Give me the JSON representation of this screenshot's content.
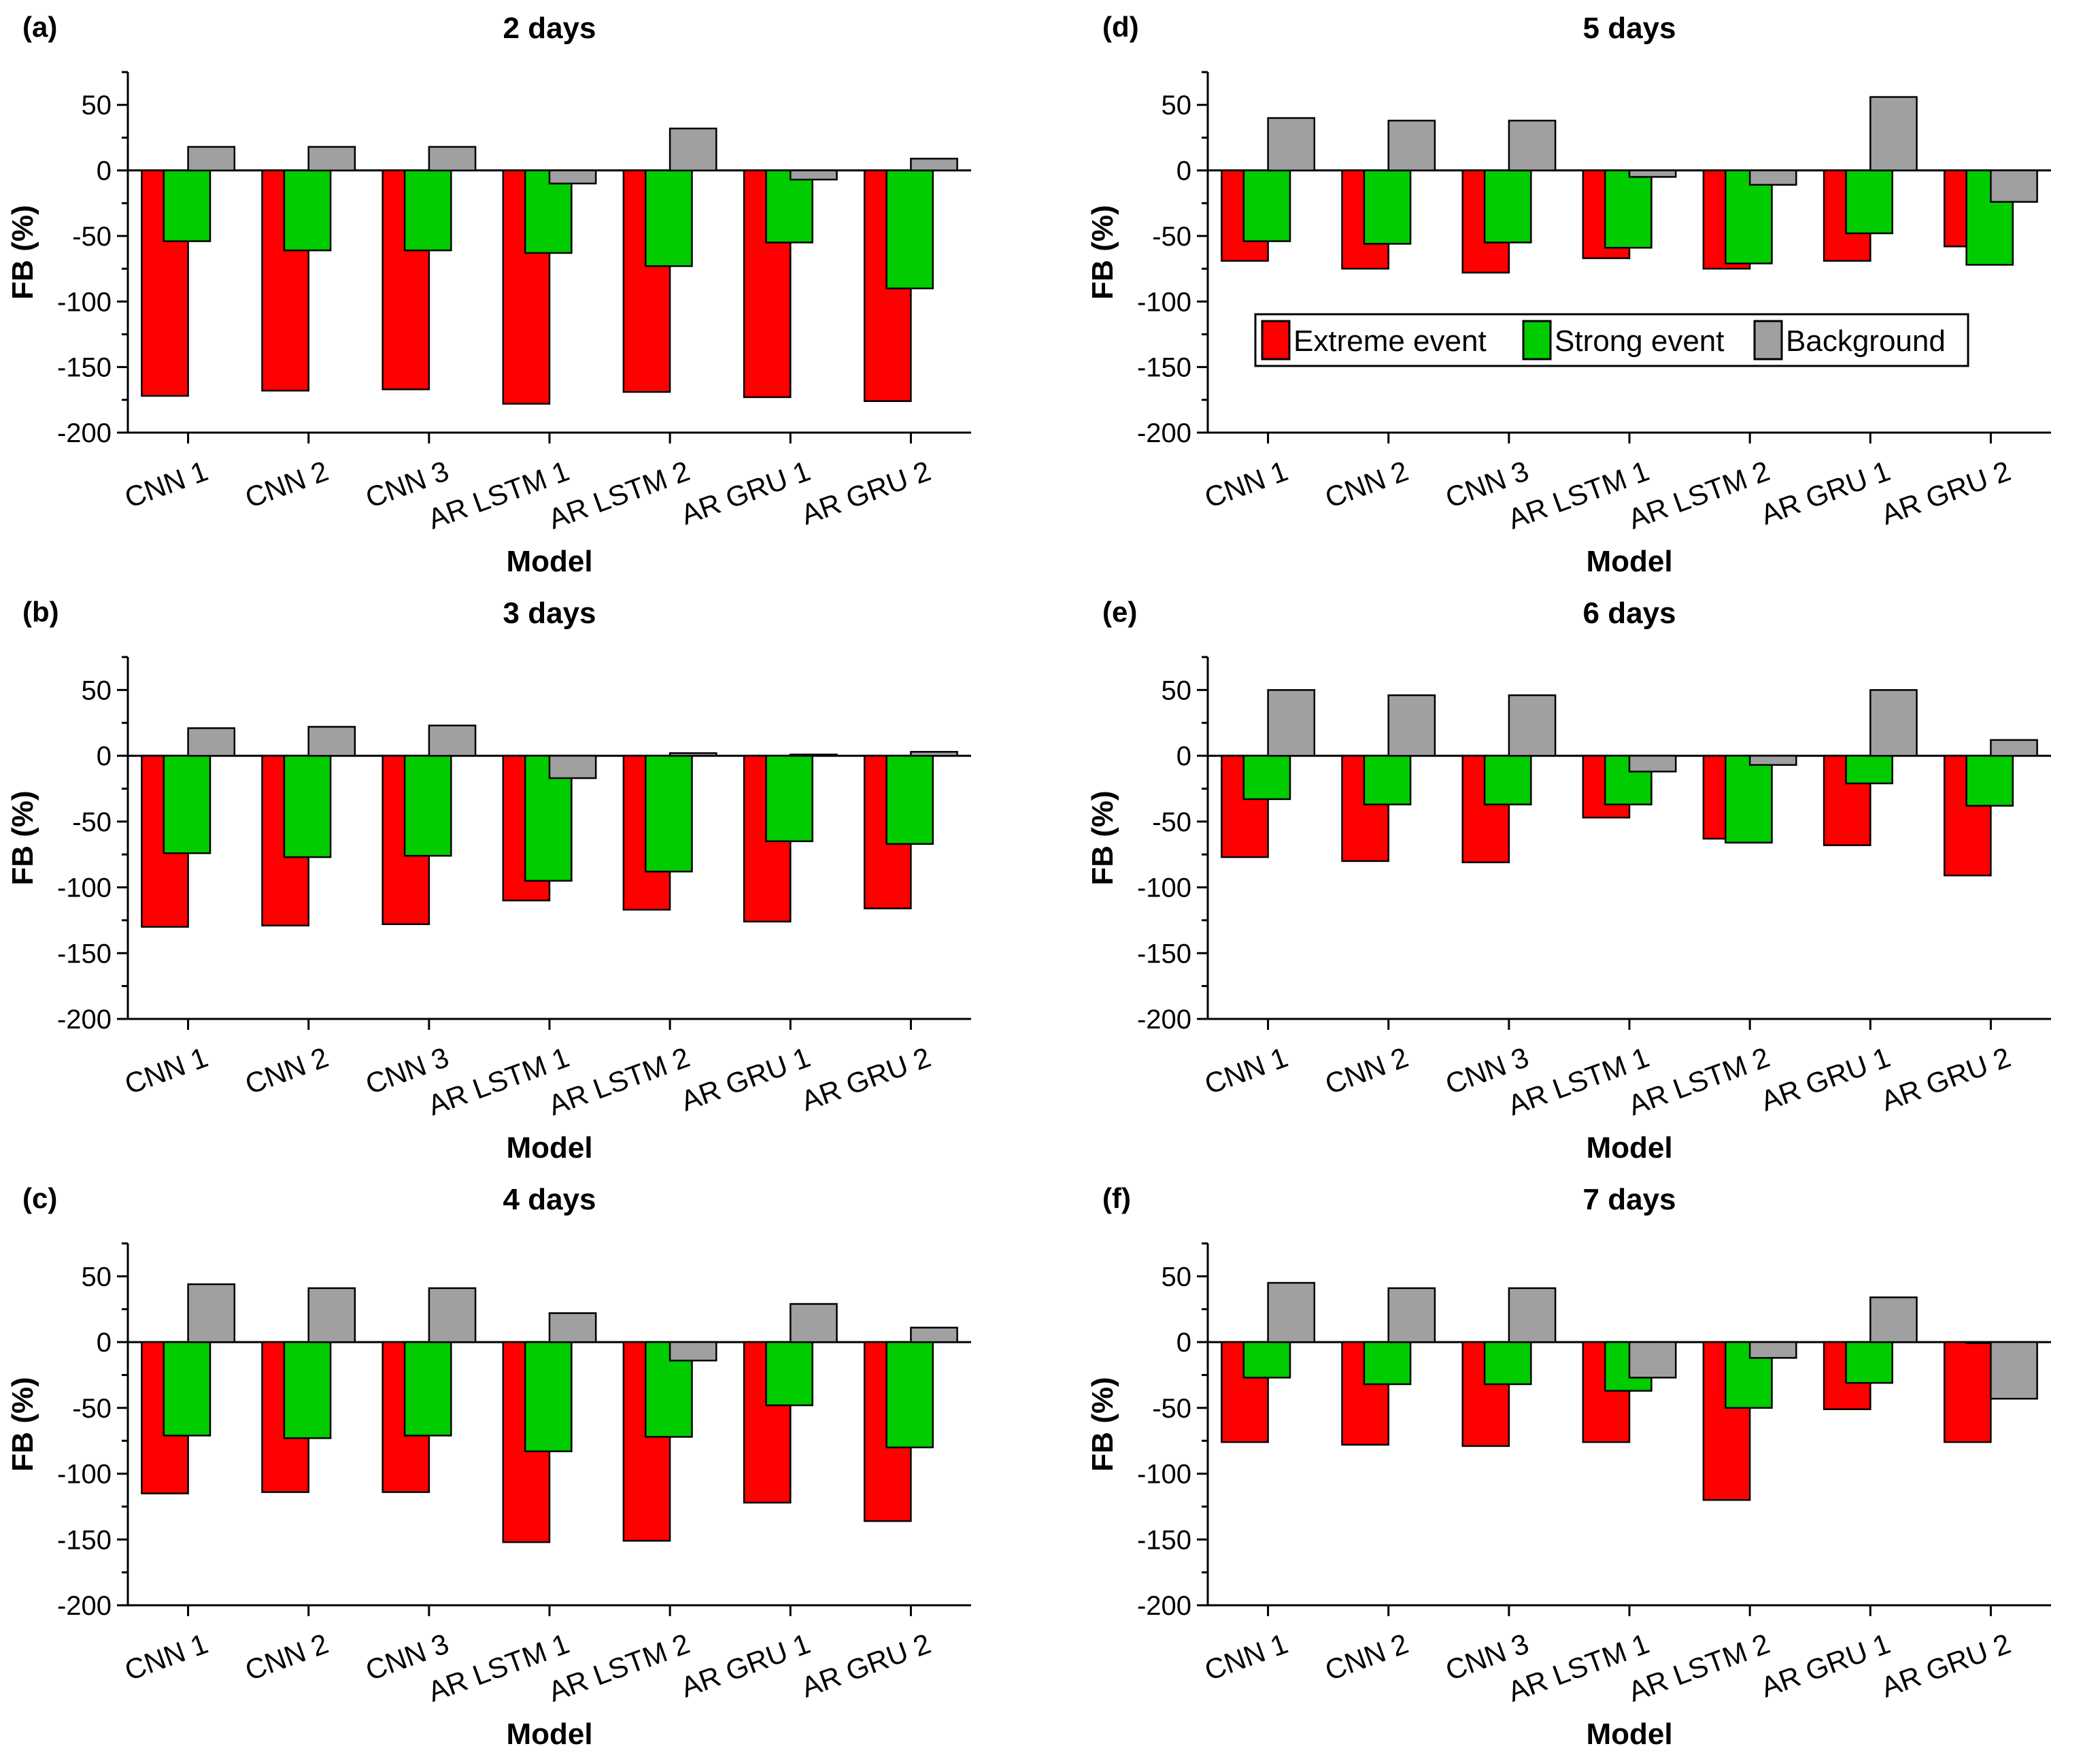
{
  "figure": {
    "ylabel": "FB (%)",
    "xlabel": "Model",
    "legend": [
      {
        "name": "Extreme event",
        "color": "#ff0000"
      },
      {
        "name": "Strong event",
        "color": "#00cc00"
      },
      {
        "name": "Background",
        "color": "#a0a0a0"
      }
    ]
  },
  "chart_data": [
    {
      "type": "bar",
      "panel": "(a)",
      "title": "2 days",
      "categories": [
        "CNN 1",
        "CNN 2",
        "CNN 3",
        "AR LSTM 1",
        "AR LSTM 2",
        "AR GRU 1",
        "AR GRU 2"
      ],
      "series": [
        {
          "name": "Extreme event",
          "values": [
            -172,
            -168,
            -167,
            -178,
            -169,
            -173,
            -176
          ]
        },
        {
          "name": "Strong event",
          "values": [
            -54,
            -61,
            -61,
            -63,
            -73,
            -55,
            -90
          ]
        },
        {
          "name": "Background",
          "values": [
            18,
            18,
            18,
            -10,
            32,
            -7,
            9
          ]
        }
      ],
      "xlabel": "Model",
      "ylabel": "FB (%)",
      "ylim": [
        -200,
        75
      ],
      "yticks": [
        -200,
        -150,
        -100,
        -50,
        0,
        50
      ]
    },
    {
      "type": "bar",
      "panel": "(b)",
      "title": "3 days",
      "categories": [
        "CNN 1",
        "CNN 2",
        "CNN 3",
        "AR LSTM 1",
        "AR LSTM 2",
        "AR GRU 1",
        "AR GRU 2"
      ],
      "series": [
        {
          "name": "Extreme event",
          "values": [
            -130,
            -129,
            -128,
            -110,
            -117,
            -126,
            -116
          ]
        },
        {
          "name": "Strong event",
          "values": [
            -74,
            -77,
            -76,
            -95,
            -88,
            -65,
            -67
          ]
        },
        {
          "name": "Background",
          "values": [
            21,
            22,
            23,
            -17,
            2,
            1,
            3
          ]
        }
      ],
      "xlabel": "Model",
      "ylabel": "FB (%)",
      "ylim": [
        -200,
        75
      ],
      "yticks": [
        -200,
        -150,
        -100,
        -50,
        0,
        50
      ]
    },
    {
      "type": "bar",
      "panel": "(c)",
      "title": "4 days",
      "categories": [
        "CNN 1",
        "CNN 2",
        "CNN 3",
        "AR LSTM 1",
        "AR LSTM 2",
        "AR GRU 1",
        "AR GRU 2"
      ],
      "series": [
        {
          "name": "Extreme event",
          "values": [
            -115,
            -114,
            -114,
            -152,
            -151,
            -122,
            -136
          ]
        },
        {
          "name": "Strong event",
          "values": [
            -71,
            -73,
            -71,
            -83,
            -72,
            -48,
            -80
          ]
        },
        {
          "name": "Background",
          "values": [
            44,
            41,
            41,
            22,
            -14,
            29,
            11
          ]
        }
      ],
      "xlabel": "Model",
      "ylabel": "FB (%)",
      "ylim": [
        -200,
        75
      ],
      "yticks": [
        -200,
        -150,
        -100,
        -50,
        0,
        50
      ]
    },
    {
      "type": "bar",
      "panel": "(d)",
      "title": "5 days",
      "categories": [
        "CNN 1",
        "CNN 2",
        "CNN 3",
        "AR LSTM 1",
        "AR LSTM 2",
        "AR GRU 1",
        "AR GRU 2"
      ],
      "series": [
        {
          "name": "Extreme event",
          "values": [
            -69,
            -75,
            -78,
            -67,
            -75,
            -69,
            -58
          ]
        },
        {
          "name": "Strong event",
          "values": [
            -54,
            -56,
            -55,
            -59,
            -71,
            -48,
            -72
          ]
        },
        {
          "name": "Background",
          "values": [
            40,
            38,
            38,
            -5,
            -11,
            56,
            -24
          ]
        }
      ],
      "xlabel": "Model",
      "ylabel": "FB (%)",
      "ylim": [
        -200,
        75
      ],
      "yticks": [
        -200,
        -150,
        -100,
        -50,
        0,
        50
      ],
      "legend_position": "inside-middle"
    },
    {
      "type": "bar",
      "panel": "(e)",
      "title": "6 days",
      "categories": [
        "CNN 1",
        "CNN 2",
        "CNN 3",
        "AR LSTM 1",
        "AR LSTM 2",
        "AR GRU 1",
        "AR GRU 2"
      ],
      "series": [
        {
          "name": "Extreme event",
          "values": [
            -77,
            -80,
            -81,
            -47,
            -63,
            -68,
            -91
          ]
        },
        {
          "name": "Strong event",
          "values": [
            -33,
            -37,
            -37,
            -37,
            -66,
            -21,
            -38
          ]
        },
        {
          "name": "Background",
          "values": [
            50,
            46,
            46,
            -12,
            -7,
            50,
            12
          ]
        }
      ],
      "xlabel": "Model",
      "ylabel": "FB (%)",
      "ylim": [
        -200,
        75
      ],
      "yticks": [
        -200,
        -150,
        -100,
        -50,
        0,
        50
      ]
    },
    {
      "type": "bar",
      "panel": "(f)",
      "title": "7 days",
      "categories": [
        "CNN 1",
        "CNN 2",
        "CNN 3",
        "AR LSTM 1",
        "AR LSTM 2",
        "AR GRU 1",
        "AR GRU 2"
      ],
      "series": [
        {
          "name": "Extreme event",
          "values": [
            -76,
            -78,
            -79,
            -76,
            -120,
            -51,
            -76
          ]
        },
        {
          "name": "Strong event",
          "values": [
            -27,
            -32,
            -32,
            -37,
            -50,
            -31,
            0
          ]
        },
        {
          "name": "Background",
          "values": [
            45,
            41,
            41,
            -27,
            -12,
            34,
            -43
          ]
        }
      ],
      "xlabel": "Model",
      "ylabel": "FB (%)",
      "ylim": [
        -200,
        75
      ],
      "yticks": [
        -200,
        -150,
        -100,
        -50,
        0,
        50
      ]
    }
  ]
}
